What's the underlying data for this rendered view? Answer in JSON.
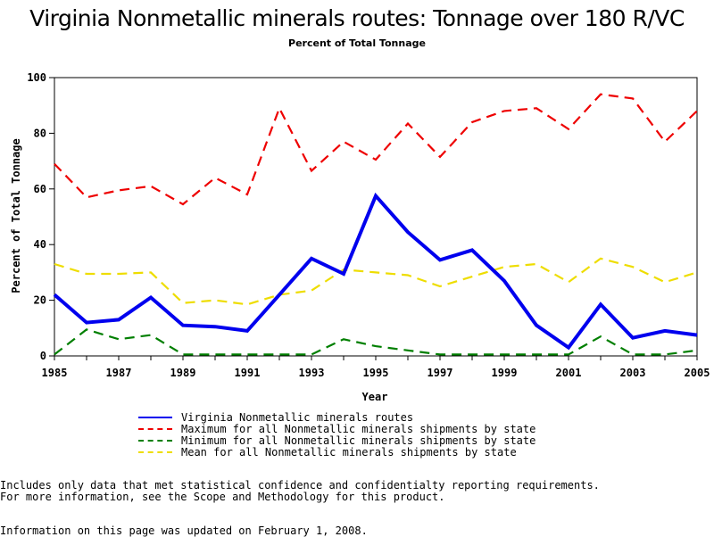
{
  "title": "Virginia Nonmetallic minerals routes: Tonnage over 180 R/VC",
  "subtitle": "Percent of Total Tonnage",
  "notes": {
    "line1": "Includes only data that met statistical confidence and confidentialty reporting requirements.",
    "line2": "For more information, see the Scope and Methodology for this product.",
    "line3": "Information on this page was updated on February 1, 2008."
  },
  "chart_data": {
    "type": "line",
    "xlabel": "Year",
    "ylabel": "Percent of Total Tonnage",
    "xlim": [
      1985,
      2005
    ],
    "ylim": [
      0,
      100
    ],
    "x_ticks": [
      "1985",
      "1987",
      "1989",
      "1991",
      "1993",
      "1995",
      "1997",
      "1999",
      "2001",
      "2003",
      "2005"
    ],
    "y_ticks": [
      "0",
      "20",
      "40",
      "60",
      "80",
      "100"
    ],
    "x": [
      1985,
      1986,
      1987,
      1988,
      1989,
      1990,
      1991,
      1992,
      1993,
      1994,
      1995,
      1996,
      1997,
      1998,
      1999,
      2000,
      2001,
      2002,
      2003,
      2004,
      2005
    ],
    "legend_position": "bottom",
    "series": [
      {
        "name": "Virginia Nonmetallic minerals routes",
        "color": "#0000ee",
        "style": "solid",
        "values": [
          22,
          12,
          13,
          21,
          11,
          10.5,
          9,
          22,
          35,
          29.5,
          57.5,
          44.5,
          34.5,
          38,
          27,
          11,
          3,
          18.5,
          6.5,
          9,
          7.5
        ]
      },
      {
        "name": "Maximum for all Nonmetallic minerals shipments by state",
        "color": "#ee0000",
        "style": "dashed",
        "values": [
          69,
          57,
          59.5,
          61,
          54.5,
          64,
          58,
          89,
          66.5,
          77,
          70.5,
          83.5,
          71.5,
          84,
          88,
          89,
          81.5,
          94,
          92.5,
          77,
          88
        ]
      },
      {
        "name": "Minimum for all Nonmetallic minerals shipments by state",
        "color": "#007f00",
        "style": "dashed",
        "values": [
          0.5,
          9.5,
          6,
          7.5,
          0.5,
          0.5,
          0.5,
          0.5,
          0.5,
          6,
          3.5,
          2,
          0.5,
          0.5,
          0.5,
          0.5,
          0.5,
          7,
          0.5,
          0.5,
          2
        ]
      },
      {
        "name": "Mean for all Nonmetallic minerals shipments by state",
        "color": "#eedd00",
        "style": "dashed",
        "values": [
          33,
          29.5,
          29.5,
          30,
          19,
          20,
          18.5,
          22,
          23.5,
          31,
          30,
          29,
          25,
          28.5,
          32,
          33,
          26.5,
          35,
          32,
          26.5,
          30
        ]
      }
    ]
  }
}
